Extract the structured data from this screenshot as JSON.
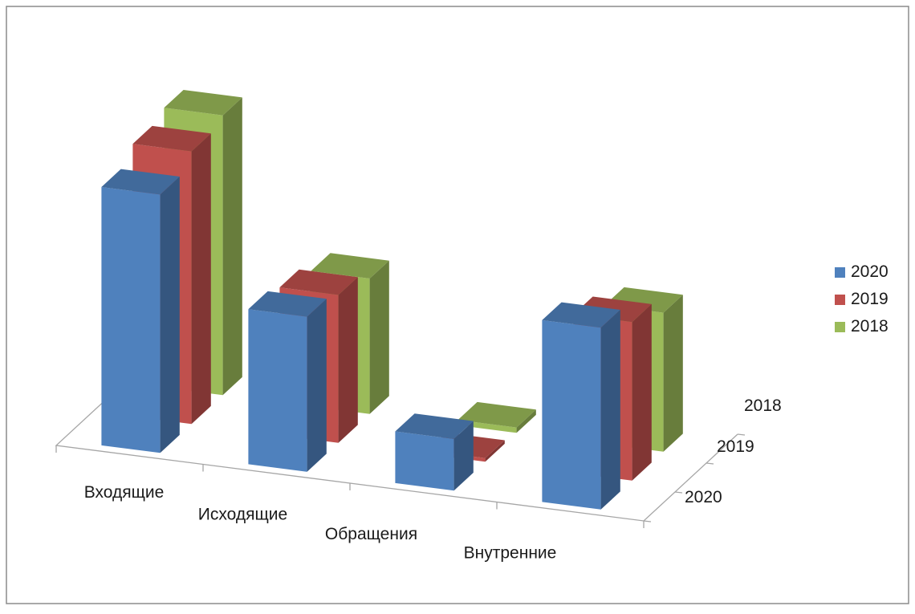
{
  "chart_data": {
    "type": "bar",
    "subtype": "3d-column",
    "categories": [
      "Входящие",
      "Исходящие",
      "Обращения",
      "Внутренние"
    ],
    "series": [
      {
        "name": "2020",
        "color": "#4f81bd",
        "values": [
          1450,
          870,
          290,
          1020
        ]
      },
      {
        "name": "2019",
        "color": "#c0504d",
        "values": [
          1530,
          830,
          20,
          890
        ]
      },
      {
        "name": "2018",
        "color": "#9bbb59",
        "values": [
          1570,
          760,
          30,
          780
        ]
      }
    ],
    "depth_labels": [
      "2018",
      "2019",
      "2020"
    ],
    "legend_position": "right",
    "grid": false
  }
}
